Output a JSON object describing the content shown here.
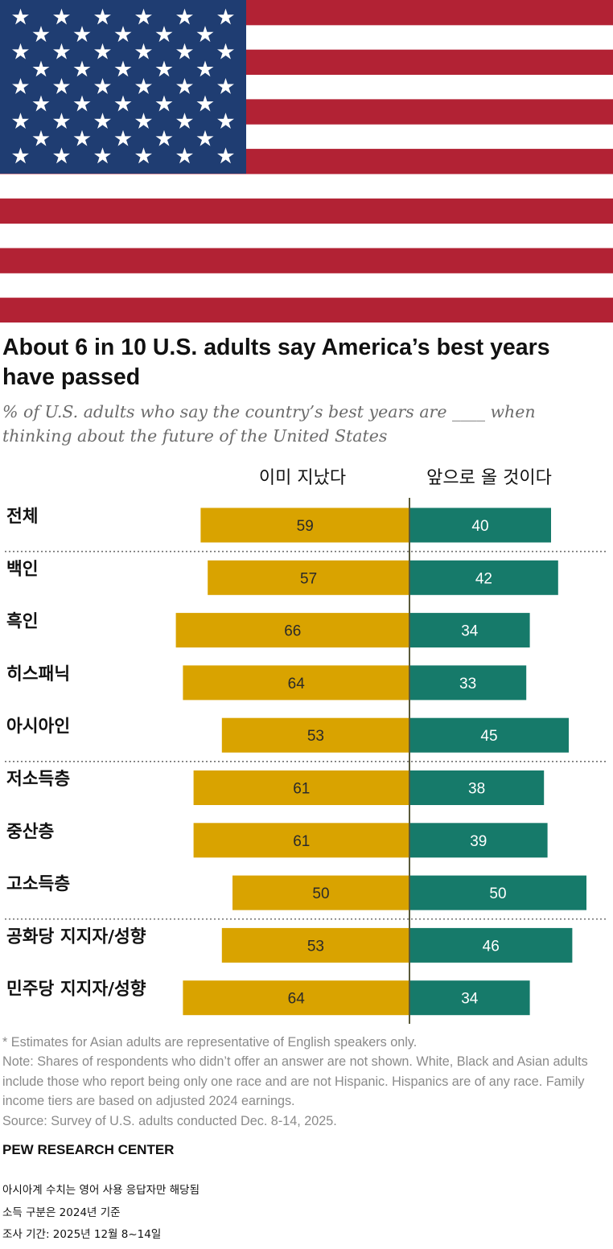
{
  "colors": {
    "flag_red": "#B22234",
    "flag_blue": "#1F3D72",
    "passed_bar": "#D9A300",
    "future_bar": "#167A6A",
    "divider": "#707070"
  },
  "icons": {
    "header_image": "us-flag"
  },
  "title": "About 6 in 10 U.S. adults say America’s best years have passed",
  "subtitle": "% of U.S. adults who say the country’s best years are ____ when thinking about the future of the United States",
  "chart_data": {
    "type": "bar",
    "orientation": "diverging-horizontal",
    "column_headers": [
      "이미 지났다",
      "앞으로 올 것이다"
    ],
    "categories": [
      "전체",
      "백인",
      "흑인",
      "히스패닉",
      "아시아인",
      "저소득층",
      "중산층",
      "고소득층",
      "공화당 지지자/성향",
      "민주당 지지자/성향"
    ],
    "series": [
      {
        "name": "이미 지났다",
        "values": [
          59,
          57,
          66,
          64,
          53,
          61,
          61,
          50,
          53,
          64
        ]
      },
      {
        "name": "앞으로 올 것이다",
        "values": [
          40,
          42,
          34,
          33,
          45,
          38,
          39,
          50,
          46,
          34
        ]
      }
    ],
    "dividers_after": [
      0,
      4,
      7
    ]
  },
  "notes": [
    "* Estimates for Asian adults are representative of English speakers only.",
    "Note: Shares of respondents who didn’t offer an answer are not shown. White, Black and Asian adults include those who report being only one race and are not Hispanic. Hispanics are of any race. Family income tiers are based on adjusted 2024 earnings.",
    "Source: Survey of U.S. adults conducted Dec. 8-14, 2025."
  ],
  "brand": "PEW RESEARCH CENTER",
  "korean_notes": [
    "아시아계 수치는 영어 사용 응답자만 해당됨",
    "소득 구분은 2024년 기준",
    "조사 기간: 2025년 12월 8~14일"
  ]
}
